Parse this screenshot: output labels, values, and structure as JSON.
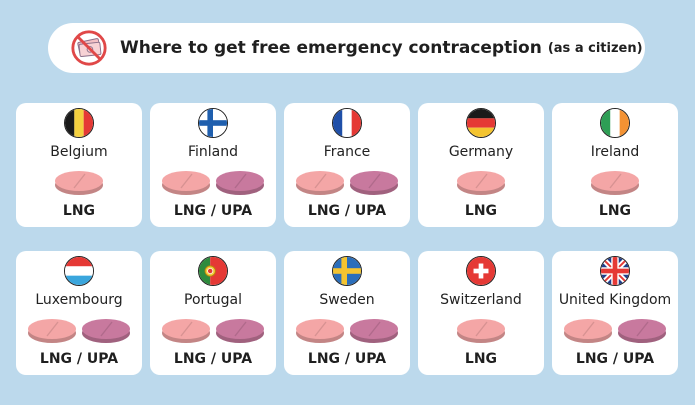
{
  "header": {
    "title": "Where to get free emergency contraception",
    "subtitle": "(as a citizen)",
    "icon": "no-money-icon"
  },
  "colors": {
    "background": "#bcd9ec",
    "lng_pill": "#f4a6a6",
    "upa_pill": "#c8799e"
  },
  "legend": {
    "lng": "LNG",
    "upa": "UPA"
  },
  "countries": [
    {
      "name": "Belgium",
      "flag": "belgium-flag-icon",
      "methods": "LNG",
      "pills": [
        "lng"
      ]
    },
    {
      "name": "Finland",
      "flag": "finland-flag-icon",
      "methods": "LNG / UPA",
      "pills": [
        "lng",
        "upa"
      ]
    },
    {
      "name": "France",
      "flag": "france-flag-icon",
      "methods": "LNG / UPA",
      "pills": [
        "lng",
        "upa"
      ]
    },
    {
      "name": "Germany",
      "flag": "germany-flag-icon",
      "methods": "LNG",
      "pills": [
        "lng"
      ]
    },
    {
      "name": "Ireland",
      "flag": "ireland-flag-icon",
      "methods": "LNG",
      "pills": [
        "lng"
      ]
    },
    {
      "name": "Luxembourg",
      "flag": "luxembourg-flag-icon",
      "methods": "LNG / UPA",
      "pills": [
        "lng",
        "upa"
      ]
    },
    {
      "name": "Portugal",
      "flag": "portugal-flag-icon",
      "methods": "LNG / UPA",
      "pills": [
        "lng",
        "upa"
      ]
    },
    {
      "name": "Sweden",
      "flag": "sweden-flag-icon",
      "methods": "LNG / UPA",
      "pills": [
        "lng",
        "upa"
      ]
    },
    {
      "name": "Switzerland",
      "flag": "switzerland-flag-icon",
      "methods": "LNG",
      "pills": [
        "lng"
      ]
    },
    {
      "name": "United Kingdom",
      "flag": "uk-flag-icon",
      "methods": "LNG / UPA",
      "pills": [
        "lng",
        "upa"
      ]
    }
  ]
}
